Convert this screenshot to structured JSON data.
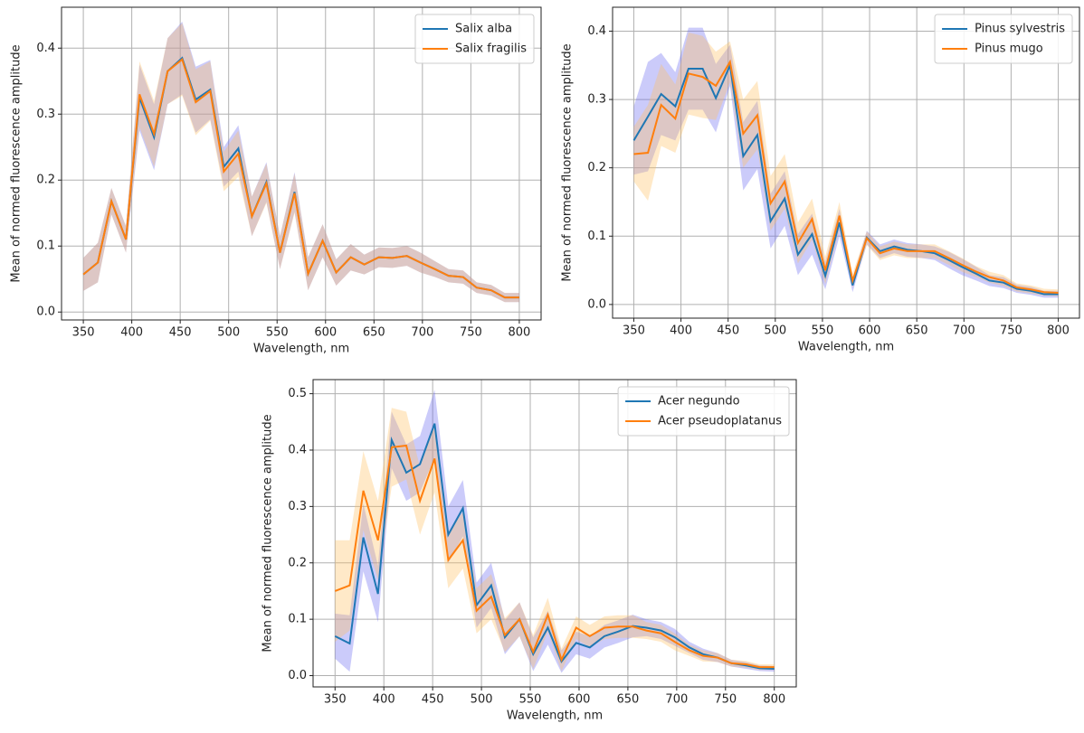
{
  "chart_data": [
    {
      "type": "line",
      "xlabel": "Wavelength, nm",
      "ylabel": "Mean of normed fluorescence amplitude",
      "x": [
        350,
        365,
        379,
        394,
        408,
        423,
        437,
        452,
        466,
        481,
        495,
        510,
        524,
        539,
        553,
        568,
        582,
        597,
        611,
        626,
        640,
        655,
        669,
        684,
        698,
        713,
        727,
        742,
        756,
        771,
        785,
        800
      ],
      "series": [
        {
          "name": "Salix alba",
          "color": "#1f77b4",
          "band_color": "#6a6af0",
          "values": [
            0.057,
            0.075,
            0.168,
            0.11,
            0.325,
            0.265,
            0.365,
            0.385,
            0.322,
            0.337,
            0.22,
            0.248,
            0.145,
            0.197,
            0.09,
            0.182,
            0.058,
            0.108,
            0.06,
            0.083,
            0.072,
            0.083,
            0.082,
            0.085,
            0.075,
            0.065,
            0.055,
            0.053,
            0.037,
            0.033,
            0.022,
            0.022
          ],
          "errors": [
            0.025,
            0.03,
            0.02,
            0.02,
            0.05,
            0.05,
            0.05,
            0.055,
            0.05,
            0.045,
            0.03,
            0.035,
            0.03,
            0.03,
            0.025,
            0.03,
            0.025,
            0.025,
            0.02,
            0.02,
            0.015,
            0.015,
            0.015,
            0.015,
            0.015,
            0.012,
            0.01,
            0.01,
            0.008,
            0.008,
            0.007,
            0.007
          ]
        },
        {
          "name": "Salix fragilis",
          "color": "#ff7f0e",
          "band_color": "#ffbf60",
          "values": [
            0.057,
            0.075,
            0.168,
            0.11,
            0.33,
            0.27,
            0.365,
            0.383,
            0.318,
            0.335,
            0.213,
            0.24,
            0.145,
            0.195,
            0.09,
            0.18,
            0.058,
            0.108,
            0.06,
            0.083,
            0.072,
            0.083,
            0.082,
            0.085,
            0.075,
            0.065,
            0.055,
            0.053,
            0.037,
            0.033,
            0.022,
            0.022
          ],
          "errors": [
            0.025,
            0.03,
            0.02,
            0.02,
            0.05,
            0.05,
            0.05,
            0.055,
            0.05,
            0.045,
            0.03,
            0.035,
            0.03,
            0.03,
            0.025,
            0.03,
            0.025,
            0.025,
            0.02,
            0.02,
            0.015,
            0.015,
            0.015,
            0.015,
            0.015,
            0.012,
            0.01,
            0.01,
            0.008,
            0.008,
            0.007,
            0.007
          ]
        }
      ],
      "xlim": [
        327.5,
        822.5
      ],
      "xticks": [
        350,
        400,
        450,
        500,
        550,
        600,
        650,
        700,
        750,
        800
      ],
      "ylim": [
        -0.012,
        0.462
      ],
      "yticks": [
        {
          "value": 0,
          "label": "0.0"
        },
        0.1,
        0.2,
        0.3,
        0.4
      ],
      "grid": true,
      "legend": "upper right"
    },
    {
      "type": "line",
      "xlabel": "Wavelength, nm",
      "ylabel": "Mean of normed fluorescence amplitude",
      "x": [
        350,
        365,
        379,
        394,
        408,
        423,
        437,
        452,
        466,
        481,
        495,
        510,
        524,
        539,
        553,
        568,
        582,
        597,
        611,
        626,
        640,
        655,
        669,
        684,
        698,
        713,
        727,
        742,
        756,
        771,
        785,
        800
      ],
      "series": [
        {
          "name": "Pinus sylvestris",
          "color": "#1f77b4",
          "band_color": "#6a6af0",
          "values": [
            0.24,
            0.275,
            0.308,
            0.29,
            0.345,
            0.345,
            0.302,
            0.35,
            0.217,
            0.248,
            0.122,
            0.155,
            0.073,
            0.103,
            0.042,
            0.12,
            0.028,
            0.098,
            0.078,
            0.085,
            0.08,
            0.078,
            0.075,
            0.065,
            0.055,
            0.045,
            0.035,
            0.032,
            0.023,
            0.02,
            0.015,
            0.015
          ],
          "errors": [
            0.05,
            0.08,
            0.06,
            0.05,
            0.06,
            0.06,
            0.05,
            0.03,
            0.05,
            0.05,
            0.04,
            0.04,
            0.03,
            0.03,
            0.02,
            0.02,
            0.01,
            0.01,
            0.01,
            0.01,
            0.01,
            0.01,
            0.01,
            0.012,
            0.012,
            0.01,
            0.008,
            0.008,
            0.006,
            0.006,
            0.005,
            0.005
          ]
        },
        {
          "name": "Pinus mugo",
          "color": "#ff7f0e",
          "band_color": "#ffbf60",
          "values": [
            0.22,
            0.222,
            0.292,
            0.272,
            0.338,
            0.333,
            0.32,
            0.355,
            0.25,
            0.277,
            0.148,
            0.18,
            0.09,
            0.125,
            0.05,
            0.13,
            0.035,
            0.097,
            0.075,
            0.082,
            0.078,
            0.078,
            0.078,
            0.068,
            0.058,
            0.048,
            0.04,
            0.035,
            0.025,
            0.022,
            0.018,
            0.017
          ],
          "errors": [
            0.04,
            0.07,
            0.06,
            0.05,
            0.06,
            0.06,
            0.05,
            0.03,
            0.05,
            0.05,
            0.04,
            0.04,
            0.03,
            0.03,
            0.02,
            0.02,
            0.01,
            0.01,
            0.01,
            0.01,
            0.01,
            0.01,
            0.01,
            0.01,
            0.01,
            0.008,
            0.008,
            0.008,
            0.006,
            0.006,
            0.005,
            0.005
          ]
        }
      ],
      "xlim": [
        327.5,
        822.5
      ],
      "xticks": [
        350,
        400,
        450,
        500,
        550,
        600,
        650,
        700,
        750,
        800
      ],
      "ylim": [
        -0.02,
        0.435
      ],
      "yticks": [
        {
          "value": 0,
          "label": "0.0"
        },
        0.1,
        0.2,
        0.3,
        0.4
      ],
      "grid": true,
      "legend": "upper right"
    },
    {
      "type": "line",
      "xlabel": "Wavelength, nm",
      "ylabel": "Mean of normed fluorescence amplitude",
      "x": [
        350,
        365,
        379,
        394,
        408,
        423,
        437,
        452,
        466,
        481,
        495,
        510,
        524,
        539,
        553,
        568,
        582,
        597,
        611,
        626,
        640,
        655,
        669,
        684,
        698,
        713,
        727,
        742,
        756,
        771,
        785,
        800
      ],
      "series": [
        {
          "name": "Acer negundo",
          "color": "#1f77b4",
          "band_color": "#6a6af0",
          "values": [
            0.07,
            0.057,
            0.245,
            0.145,
            0.418,
            0.36,
            0.375,
            0.447,
            0.25,
            0.297,
            0.125,
            0.16,
            0.068,
            0.1,
            0.038,
            0.085,
            0.025,
            0.058,
            0.05,
            0.07,
            0.078,
            0.088,
            0.085,
            0.08,
            0.068,
            0.05,
            0.038,
            0.032,
            0.022,
            0.018,
            0.013,
            0.012
          ],
          "errors": [
            0.04,
            0.05,
            0.06,
            0.05,
            0.05,
            0.05,
            0.05,
            0.06,
            0.05,
            0.05,
            0.04,
            0.04,
            0.03,
            0.03,
            0.03,
            0.03,
            0.02,
            0.02,
            0.02,
            0.02,
            0.02,
            0.02,
            0.015,
            0.015,
            0.015,
            0.01,
            0.01,
            0.008,
            0.006,
            0.006,
            0.005,
            0.005
          ]
        },
        {
          "name": "Acer pseudoplatanus",
          "color": "#ff7f0e",
          "band_color": "#ffbf60",
          "values": [
            0.15,
            0.16,
            0.328,
            0.24,
            0.405,
            0.408,
            0.31,
            0.385,
            0.205,
            0.24,
            0.115,
            0.14,
            0.072,
            0.1,
            0.042,
            0.108,
            0.028,
            0.085,
            0.07,
            0.085,
            0.087,
            0.087,
            0.08,
            0.075,
            0.06,
            0.045,
            0.035,
            0.032,
            0.022,
            0.02,
            0.015,
            0.015
          ],
          "errors": [
            0.09,
            0.08,
            0.07,
            0.07,
            0.07,
            0.06,
            0.06,
            0.06,
            0.05,
            0.05,
            0.04,
            0.04,
            0.03,
            0.03,
            0.03,
            0.03,
            0.02,
            0.02,
            0.02,
            0.02,
            0.02,
            0.02,
            0.015,
            0.015,
            0.015,
            0.01,
            0.01,
            0.008,
            0.006,
            0.006,
            0.005,
            0.005
          ]
        }
      ],
      "xlim": [
        327.5,
        822.5
      ],
      "xticks": [
        350,
        400,
        450,
        500,
        550,
        600,
        650,
        700,
        750,
        800
      ],
      "ylim": [
        -0.02,
        0.525
      ],
      "yticks": [
        {
          "value": 0,
          "label": "0.0"
        },
        0.1,
        0.2,
        0.3,
        0.4,
        0.5
      ],
      "grid": true,
      "legend": "upper right"
    }
  ]
}
